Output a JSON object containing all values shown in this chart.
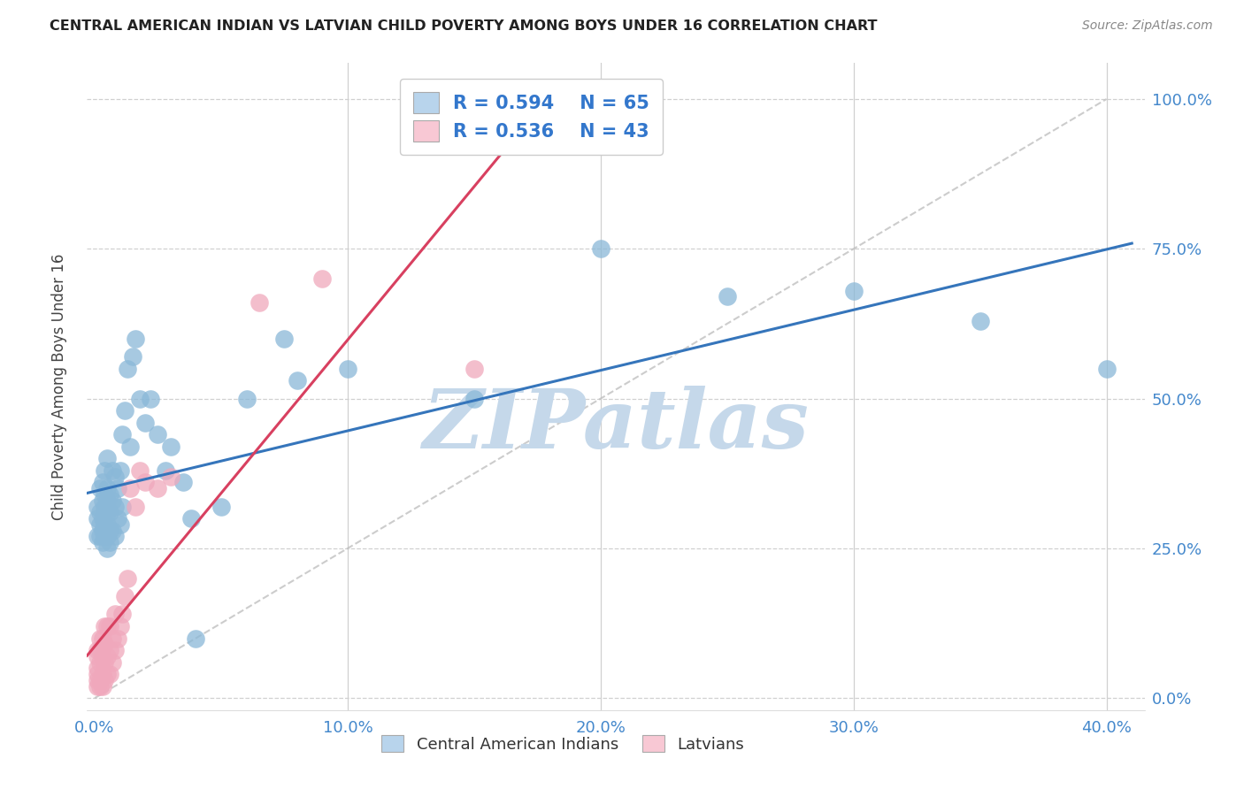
{
  "title": "CENTRAL AMERICAN INDIAN VS LATVIAN CHILD POVERTY AMONG BOYS UNDER 16 CORRELATION CHART",
  "source": "Source: ZipAtlas.com",
  "ylabel": "Child Poverty Among Boys Under 16",
  "xlim": [
    -0.003,
    0.415
  ],
  "ylim": [
    -0.02,
    1.06
  ],
  "xlabel_tick_vals": [
    0.0,
    0.1,
    0.2,
    0.3,
    0.4
  ],
  "xlabel_ticks": [
    "0.0%",
    "10.0%",
    "20.0%",
    "30.0%",
    "40.0%"
  ],
  "ylabel_tick_vals": [
    0.0,
    0.25,
    0.5,
    0.75,
    1.0
  ],
  "ylabel_ticks": [
    "0.0%",
    "25.0%",
    "50.0%",
    "75.0%",
    "100.0%"
  ],
  "blue_R": "0.594",
  "blue_N": "65",
  "pink_R": "0.536",
  "pink_N": "43",
  "blue_scatter_color": "#8ab8d8",
  "pink_scatter_color": "#f0a8bc",
  "blue_line_color": "#3575bb",
  "pink_line_color": "#d84060",
  "diag_color": "#c0c0c0",
  "watermark_color": "#c5d8ea",
  "blue_legend_color": "#b8d4ec",
  "pink_legend_color": "#f8c8d4",
  "blue_scatter_x": [
    0.001,
    0.001,
    0.001,
    0.002,
    0.002,
    0.002,
    0.002,
    0.003,
    0.003,
    0.003,
    0.003,
    0.003,
    0.004,
    0.004,
    0.004,
    0.004,
    0.004,
    0.005,
    0.005,
    0.005,
    0.005,
    0.005,
    0.005,
    0.005,
    0.006,
    0.006,
    0.006,
    0.006,
    0.007,
    0.007,
    0.007,
    0.008,
    0.008,
    0.008,
    0.009,
    0.009,
    0.01,
    0.01,
    0.011,
    0.011,
    0.012,
    0.013,
    0.014,
    0.015,
    0.016,
    0.018,
    0.02,
    0.022,
    0.025,
    0.028,
    0.03,
    0.035,
    0.038,
    0.04,
    0.05,
    0.06,
    0.075,
    0.08,
    0.1,
    0.15,
    0.2,
    0.25,
    0.3,
    0.35,
    0.4
  ],
  "blue_scatter_y": [
    0.27,
    0.3,
    0.32,
    0.27,
    0.29,
    0.31,
    0.35,
    0.26,
    0.28,
    0.3,
    0.33,
    0.36,
    0.27,
    0.29,
    0.32,
    0.34,
    0.38,
    0.25,
    0.27,
    0.29,
    0.31,
    0.33,
    0.35,
    0.4,
    0.26,
    0.28,
    0.31,
    0.34,
    0.28,
    0.33,
    0.38,
    0.27,
    0.32,
    0.37,
    0.3,
    0.35,
    0.29,
    0.38,
    0.32,
    0.44,
    0.48,
    0.55,
    0.42,
    0.57,
    0.6,
    0.5,
    0.46,
    0.5,
    0.44,
    0.38,
    0.42,
    0.36,
    0.3,
    0.1,
    0.32,
    0.5,
    0.6,
    0.53,
    0.55,
    0.5,
    0.75,
    0.67,
    0.68,
    0.63,
    0.55
  ],
  "pink_scatter_x": [
    0.001,
    0.001,
    0.001,
    0.001,
    0.001,
    0.001,
    0.002,
    0.002,
    0.002,
    0.002,
    0.002,
    0.003,
    0.003,
    0.003,
    0.003,
    0.004,
    0.004,
    0.004,
    0.004,
    0.005,
    0.005,
    0.005,
    0.006,
    0.006,
    0.006,
    0.007,
    0.007,
    0.008,
    0.008,
    0.009,
    0.01,
    0.011,
    0.012,
    0.013,
    0.014,
    0.016,
    0.018,
    0.02,
    0.025,
    0.03,
    0.065,
    0.09,
    0.15
  ],
  "pink_scatter_y": [
    0.02,
    0.03,
    0.04,
    0.05,
    0.07,
    0.08,
    0.02,
    0.03,
    0.06,
    0.08,
    0.1,
    0.02,
    0.04,
    0.07,
    0.1,
    0.03,
    0.06,
    0.09,
    0.12,
    0.04,
    0.07,
    0.12,
    0.04,
    0.08,
    0.12,
    0.06,
    0.1,
    0.08,
    0.14,
    0.1,
    0.12,
    0.14,
    0.17,
    0.2,
    0.35,
    0.32,
    0.38,
    0.36,
    0.35,
    0.37,
    0.66,
    0.7,
    0.55
  ]
}
